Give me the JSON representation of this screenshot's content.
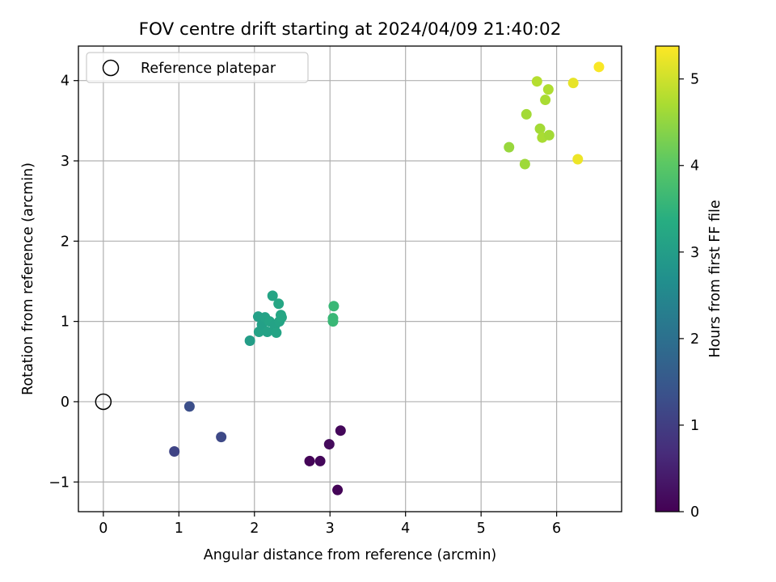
{
  "chart_data": {
    "type": "scatter",
    "title": "FOV centre drift starting at 2024/04/09 21:40:02",
    "xlabel": "Angular distance from reference (arcmin)",
    "ylabel": "Rotation from reference (arcmin)",
    "xlim": [
      -0.33,
      6.86
    ],
    "ylim": [
      -1.37,
      4.43
    ],
    "xticks": [
      0,
      1,
      2,
      3,
      4,
      5,
      6
    ],
    "yticks": [
      -1,
      0,
      1,
      2,
      3,
      4
    ],
    "xtick_labels": [
      "0",
      "1",
      "2",
      "3",
      "4",
      "5",
      "6"
    ],
    "ytick_labels": [
      "−1",
      "0",
      "1",
      "2",
      "3",
      "4"
    ],
    "grid": true,
    "legend": {
      "position": "top-left",
      "entries": [
        "Reference platepar"
      ]
    },
    "reference_point": {
      "name": "Reference platepar",
      "x": 0,
      "y": 0
    },
    "colormap": "viridis",
    "colorbar": {
      "label": "Hours from first FF file",
      "range": [
        0,
        5.38
      ],
      "ticks": [
        0,
        1,
        2,
        3,
        4,
        5
      ],
      "tick_labels": [
        "0",
        "1",
        "2",
        "3",
        "4",
        "5"
      ]
    },
    "points": [
      {
        "x": 2.73,
        "y": -0.74,
        "c": 0.05
      },
      {
        "x": 2.87,
        "y": -0.74,
        "c": 0.1
      },
      {
        "x": 2.99,
        "y": -0.53,
        "c": 0.15
      },
      {
        "x": 3.14,
        "y": -0.36,
        "c": 0.1
      },
      {
        "x": 3.1,
        "y": -1.1,
        "c": 0.05
      },
      {
        "x": 1.14,
        "y": -0.06,
        "c": 1.3
      },
      {
        "x": 0.94,
        "y": -0.62,
        "c": 1.1
      },
      {
        "x": 1.56,
        "y": -0.44,
        "c": 1.2
      },
      {
        "x": 1.94,
        "y": 0.76,
        "c": 3.0
      },
      {
        "x": 2.05,
        "y": 1.06,
        "c": 3.05
      },
      {
        "x": 2.06,
        "y": 0.87,
        "c": 3.1
      },
      {
        "x": 2.1,
        "y": 0.96,
        "c": 3.05
      },
      {
        "x": 2.14,
        "y": 1.05,
        "c": 3.1
      },
      {
        "x": 2.17,
        "y": 0.87,
        "c": 3.1
      },
      {
        "x": 2.2,
        "y": 1.0,
        "c": 3.15
      },
      {
        "x": 2.24,
        "y": 1.32,
        "c": 3.15
      },
      {
        "x": 2.27,
        "y": 0.95,
        "c": 3.1
      },
      {
        "x": 2.29,
        "y": 0.86,
        "c": 3.15
      },
      {
        "x": 2.32,
        "y": 1.22,
        "c": 3.2
      },
      {
        "x": 2.33,
        "y": 1.0,
        "c": 3.15
      },
      {
        "x": 2.35,
        "y": 1.08,
        "c": 3.2
      },
      {
        "x": 2.36,
        "y": 1.05,
        "c": 3.2
      },
      {
        "x": 3.05,
        "y": 1.19,
        "c": 3.6
      },
      {
        "x": 3.04,
        "y": 1.04,
        "c": 3.6
      },
      {
        "x": 3.04,
        "y": 1.0,
        "c": 3.6
      },
      {
        "x": 5.37,
        "y": 3.17,
        "c": 4.55
      },
      {
        "x": 5.58,
        "y": 2.96,
        "c": 4.6
      },
      {
        "x": 5.6,
        "y": 3.58,
        "c": 4.65
      },
      {
        "x": 5.74,
        "y": 3.99,
        "c": 4.8
      },
      {
        "x": 5.78,
        "y": 3.4,
        "c": 4.65
      },
      {
        "x": 5.81,
        "y": 3.29,
        "c": 4.7
      },
      {
        "x": 5.85,
        "y": 3.76,
        "c": 4.7
      },
      {
        "x": 5.89,
        "y": 3.89,
        "c": 4.75
      },
      {
        "x": 5.9,
        "y": 3.32,
        "c": 4.65
      },
      {
        "x": 6.22,
        "y": 3.97,
        "c": 5.2
      },
      {
        "x": 6.28,
        "y": 3.02,
        "c": 5.25
      },
      {
        "x": 6.56,
        "y": 4.17,
        "c": 5.35
      }
    ]
  }
}
